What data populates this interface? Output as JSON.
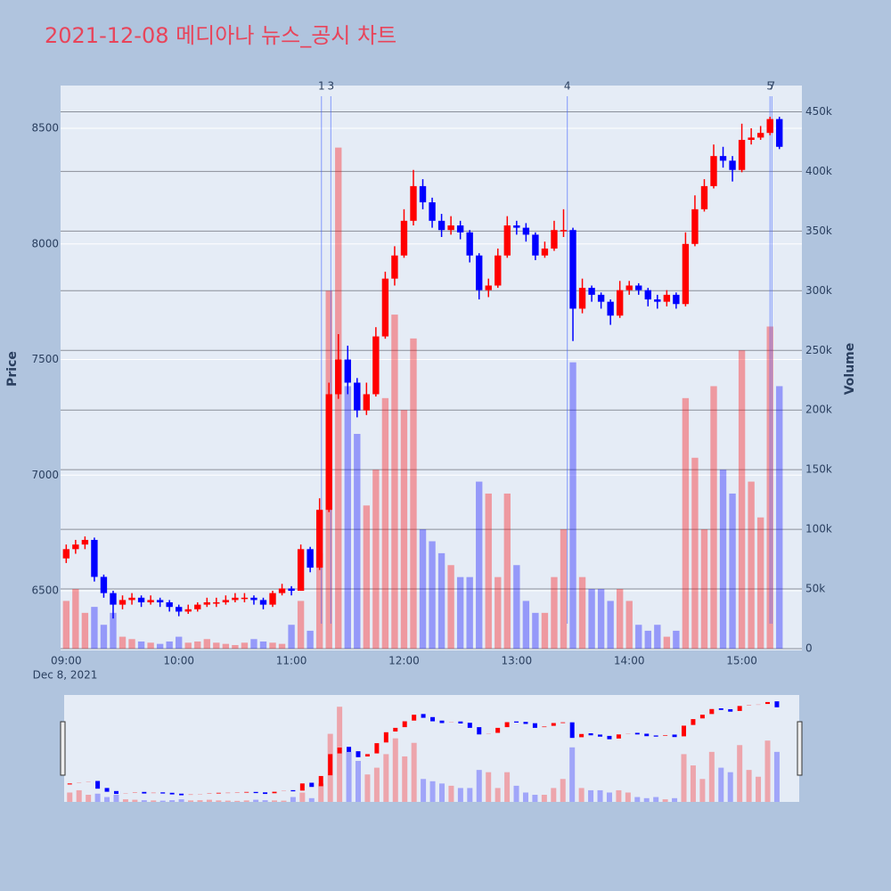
{
  "chart_data": {
    "type": "candlestick",
    "title": "2021-12-08 메디아나 뉴스_공시 차트",
    "y_title": "Price",
    "y2_title": "Volume",
    "x_date_label": "Dec 8, 2021",
    "up_color": "#ff0000",
    "down_color": "#0000ff",
    "xlim": [
      "08:57",
      "15:32"
    ],
    "xticks": [
      "09:00",
      "10:00",
      "11:00",
      "12:00",
      "13:00",
      "14:00",
      "15:00"
    ],
    "ylim": [
      6242,
      8685
    ],
    "yticks": [
      6500,
      7000,
      7500,
      8000,
      8500
    ],
    "y2lim": [
      -1500,
      472000
    ],
    "y2ticks": [
      0,
      {
        "value": 50000,
        "label": "50k"
      },
      {
        "value": 100000,
        "label": "100k"
      },
      {
        "value": 150000,
        "label": "150k"
      },
      {
        "value": 200000,
        "label": "200k"
      },
      {
        "value": 250000,
        "label": "250k"
      },
      {
        "value": 300000,
        "label": "300k"
      },
      {
        "value": 350000,
        "label": "350k"
      },
      {
        "value": 400000,
        "label": "400k"
      },
      {
        "value": 450000,
        "label": "450k"
      }
    ],
    "x": [
      "09:00",
      "09:05",
      "09:10",
      "09:15",
      "09:20",
      "09:25",
      "09:30",
      "09:35",
      "09:40",
      "09:45",
      "09:50",
      "09:55",
      "10:00",
      "10:05",
      "10:10",
      "10:15",
      "10:20",
      "10:25",
      "10:30",
      "10:35",
      "10:40",
      "10:45",
      "10:50",
      "10:55",
      "11:00",
      "11:05",
      "11:10",
      "11:15",
      "11:20",
      "11:25",
      "11:30",
      "11:35",
      "11:40",
      "11:45",
      "11:50",
      "11:55",
      "12:00",
      "12:05",
      "12:10",
      "12:15",
      "12:20",
      "12:25",
      "12:30",
      "12:35",
      "12:40",
      "12:45",
      "12:50",
      "12:55",
      "13:00",
      "13:05",
      "13:10",
      "13:15",
      "13:20",
      "13:25",
      "13:30",
      "13:35",
      "13:40",
      "13:45",
      "13:50",
      "13:55",
      "14:00",
      "14:05",
      "14:10",
      "14:15",
      "14:20",
      "14:25",
      "14:30",
      "14:35",
      "14:40",
      "14:45",
      "14:50",
      "14:55",
      "15:00",
      "15:05",
      "15:10",
      "15:15",
      "15:20"
    ],
    "open": [
      6640,
      6680,
      6700,
      6720,
      6560,
      6490,
      6440,
      6460,
      6470,
      6450,
      6460,
      6450,
      6430,
      6410,
      6420,
      6440,
      6450,
      6450,
      6460,
      6470,
      6470,
      6460,
      6440,
      6490,
      6510,
      6500,
      6680,
      6600,
      6850,
      7350,
      7500,
      7400,
      7280,
      7350,
      7600,
      7850,
      7950,
      8100,
      8250,
      8180,
      8100,
      8060,
      8080,
      8050,
      7950,
      7800,
      7820,
      7950,
      8080,
      8070,
      8040,
      7950,
      7980,
      8060,
      8060,
      7720,
      7810,
      7780,
      7750,
      7690,
      7800,
      7820,
      7800,
      7760,
      7750,
      7780,
      7740,
      8000,
      8150,
      8250,
      8380,
      8360,
      8320,
      8450,
      8460,
      8480,
      8540
    ],
    "high": [
      6700,
      6720,
      6735,
      6730,
      6570,
      6500,
      6480,
      6490,
      6480,
      6480,
      6470,
      6460,
      6440,
      6440,
      6450,
      6470,
      6470,
      6480,
      6490,
      6490,
      6480,
      6470,
      6500,
      6530,
      6520,
      6700,
      6690,
      6900,
      7400,
      7610,
      7560,
      7420,
      7400,
      7640,
      7880,
      7990,
      8150,
      8320,
      8280,
      8200,
      8130,
      8120,
      8100,
      8060,
      7960,
      7850,
      7980,
      8120,
      8100,
      8090,
      8050,
      8010,
      8100,
      8150,
      8070,
      7850,
      7820,
      7790,
      7760,
      7840,
      7840,
      7830,
      7810,
      7780,
      7800,
      7790,
      8050,
      8210,
      8280,
      8430,
      8420,
      8380,
      8520,
      8500,
      8510,
      8550,
      8550
    ],
    "low": [
      6620,
      6660,
      6680,
      6540,
      6470,
      6380,
      6420,
      6440,
      6430,
      6440,
      6430,
      6410,
      6390,
      6400,
      6410,
      6430,
      6430,
      6440,
      6450,
      6450,
      6440,
      6420,
      6430,
      6480,
      6480,
      6500,
      6580,
      6590,
      6840,
      7330,
      7350,
      7250,
      7260,
      7340,
      7590,
      7820,
      7940,
      8080,
      8150,
      8070,
      8030,
      8040,
      8020,
      7920,
      7760,
      7770,
      7810,
      7940,
      8040,
      8010,
      7930,
      7940,
      7970,
      8030,
      7580,
      7700,
      7750,
      7720,
      7650,
      7680,
      7780,
      7780,
      7730,
      7720,
      7730,
      7720,
      7730,
      7990,
      8140,
      8240,
      8330,
      8270,
      8310,
      8430,
      8450,
      8470,
      8410
    ],
    "close": [
      6680,
      6700,
      6720,
      6560,
      6490,
      6440,
      6460,
      6470,
      6450,
      6460,
      6450,
      6430,
      6410,
      6420,
      6440,
      6450,
      6450,
      6460,
      6470,
      6470,
      6460,
      6440,
      6490,
      6510,
      6500,
      6680,
      6600,
      6850,
      7350,
      7500,
      7400,
      7280,
      7350,
      7600,
      7850,
      7950,
      8100,
      8250,
      8180,
      8100,
      8060,
      8080,
      8050,
      7950,
      7800,
      7820,
      7950,
      8080,
      8070,
      8040,
      7950,
      7980,
      8060,
      8060,
      7720,
      7810,
      7780,
      7750,
      7690,
      7800,
      7820,
      7800,
      7760,
      7750,
      7780,
      7740,
      8000,
      8150,
      8250,
      8380,
      8360,
      8320,
      8450,
      8460,
      8480,
      8540,
      8420
    ],
    "volume": [
      40000,
      50000,
      30000,
      35000,
      20000,
      30000,
      10000,
      8000,
      6000,
      5000,
      4000,
      6000,
      10000,
      5000,
      6000,
      8000,
      5000,
      4000,
      3000,
      5000,
      8000,
      6000,
      5000,
      4000,
      20000,
      40000,
      15000,
      80000,
      300000,
      420000,
      220000,
      180000,
      120000,
      150000,
      210000,
      280000,
      200000,
      260000,
      100000,
      90000,
      80000,
      70000,
      60000,
      60000,
      140000,
      130000,
      60000,
      130000,
      70000,
      40000,
      30000,
      30000,
      60000,
      100000,
      240000,
      60000,
      50000,
      50000,
      40000,
      50000,
      40000,
      20000,
      15000,
      20000,
      10000,
      15000,
      210000,
      160000,
      100000,
      220000,
      150000,
      130000,
      250000,
      140000,
      110000,
      270000,
      220000
    ],
    "markers": [
      {
        "label": "1",
        "x": "11:16"
      },
      {
        "label": "3",
        "x": "11:21"
      },
      {
        "label": "4",
        "x": "13:27"
      },
      {
        "label": "5",
        "x": "15:15"
      },
      {
        "label": "7",
        "x": "15:16"
      }
    ]
  }
}
